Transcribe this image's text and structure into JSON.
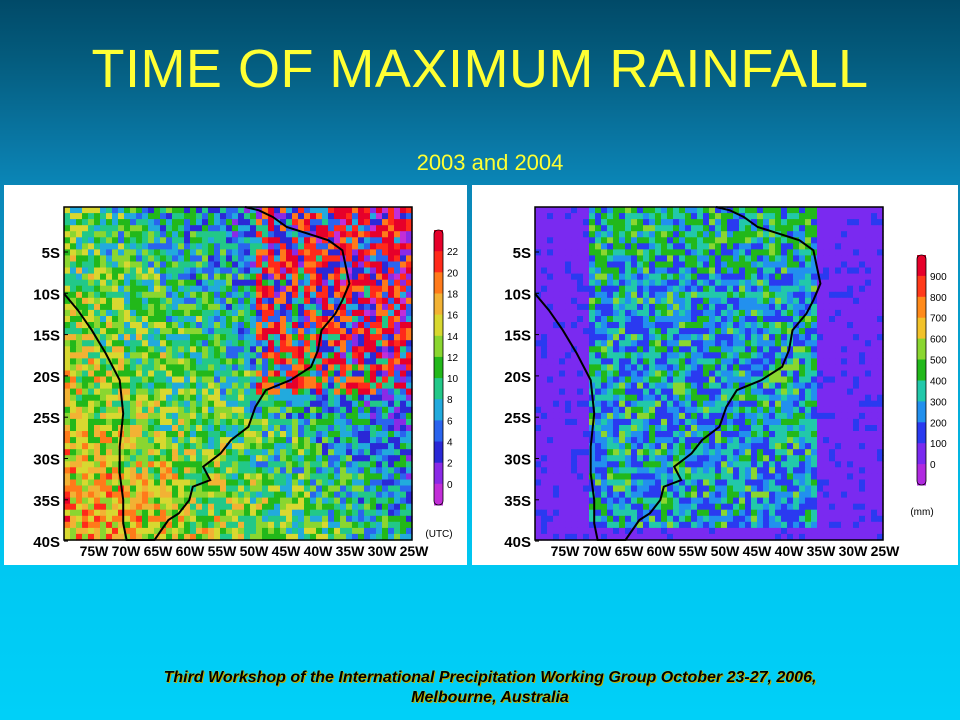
{
  "slide": {
    "title": "TIME OF MAXIMUM RAINFALL",
    "subtitle": "2003 and 2004",
    "footer_line1": "Third Workshop of the International Precipitation Working Group October 23-27, 2006,",
    "footer_line2": "Melbourne, Australia"
  },
  "maps": {
    "lat_labels": [
      "5S",
      "10S",
      "15S",
      "20S",
      "25S",
      "30S",
      "35S",
      "40S"
    ],
    "lon_labels": [
      "75W",
      "70W",
      "65W",
      "60W",
      "55W",
      "50W",
      "45W",
      "40W",
      "35W",
      "30W",
      "25W"
    ],
    "left": {
      "unit_label": "(UTC)",
      "colorbar_labels": [
        "22",
        "20",
        "18",
        "16",
        "14",
        "12",
        "10",
        "8",
        "6",
        "4",
        "2",
        "0"
      ],
      "colorbar_colors": [
        "#e6002a",
        "#ff2a1a",
        "#ff7a1a",
        "#f2b234",
        "#d8d830",
        "#8ad630",
        "#22b81a",
        "#22c888",
        "#22aadd",
        "#2a64ee",
        "#2a28d6",
        "#8a2ae6",
        "#c22ed8"
      ]
    },
    "right": {
      "unit_label": "(mm)",
      "colorbar_labels": [
        "900",
        "800",
        "700",
        "600",
        "500",
        "400",
        "300",
        "200",
        "100",
        "0"
      ],
      "colorbar_colors": [
        "#e6002a",
        "#ff3a1a",
        "#ff8a1a",
        "#f2c22a",
        "#8ad630",
        "#22b81a",
        "#22c8aa",
        "#2290ee",
        "#2a3af0",
        "#7a2af0",
        "#b02ae0"
      ]
    }
  }
}
